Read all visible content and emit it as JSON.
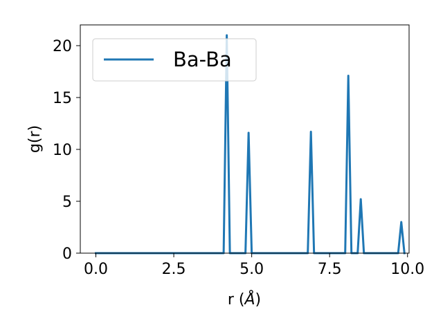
{
  "chart_data": {
    "type": "line",
    "xlabel_prefix": "r (",
    "xlabel_unit": "Å",
    "xlabel_suffix": ")",
    "ylabel": "g(r)",
    "xlim": [
      -0.5,
      10.05
    ],
    "ylim": [
      0,
      22
    ],
    "x_ticks": [
      0.0,
      2.5,
      5.0,
      7.5,
      10.0
    ],
    "x_tick_labels": [
      "0.0",
      "2.5",
      "5.0",
      "7.5",
      "10.0"
    ],
    "y_ticks": [
      0,
      5,
      10,
      15,
      20
    ],
    "y_tick_labels": [
      "0",
      "5",
      "10",
      "15",
      "20"
    ],
    "grid": false,
    "legend_position": "upper-left",
    "series": [
      {
        "name": "Ba-Ba",
        "color": "#1f77b4",
        "x": [
          0.0,
          4.1,
          4.2,
          4.3,
          4.8,
          4.9,
          5.0,
          6.8,
          6.9,
          7.0,
          8.0,
          8.1,
          8.2,
          8.4,
          8.5,
          8.6,
          9.7,
          9.8,
          9.9
        ],
        "y": [
          0,
          0,
          21.0,
          0,
          0,
          11.6,
          0,
          0,
          11.7,
          0,
          0,
          17.1,
          0,
          0,
          5.2,
          0,
          0,
          3.0,
          0
        ]
      }
    ]
  }
}
